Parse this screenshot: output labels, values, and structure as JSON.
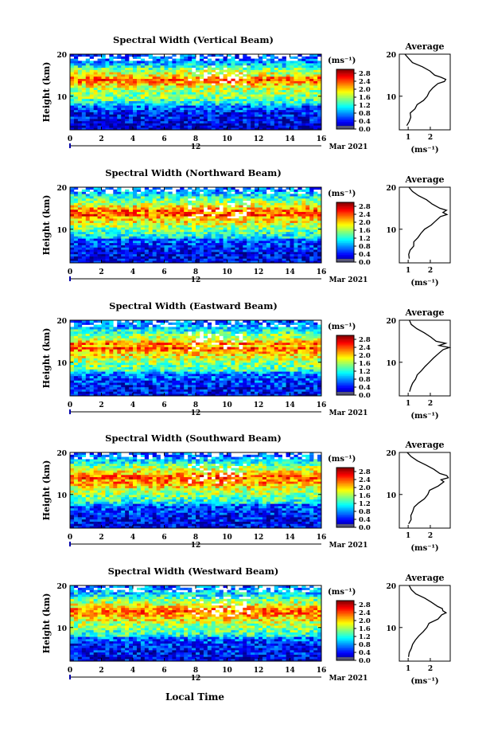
{
  "figure": {
    "x_axis_label": "Local Time",
    "date_label": "Mar 2021",
    "date_marker": "12",
    "average_title": "Average",
    "unit_label": "(ms⁻¹)"
  },
  "chart_data": [
    {
      "type": "heatmap",
      "title": "Spectral Width (Vertical Beam)",
      "xlabel": "",
      "ylabel": "Height (km)",
      "xlim": [
        0,
        16
      ],
      "ylim": [
        2,
        20
      ],
      "x_ticks": [
        0,
        2,
        4,
        6,
        8,
        10,
        12,
        14,
        16
      ],
      "y_ticks": [
        10,
        20
      ],
      "colorbar_ticks": [
        "0.0",
        "0.4",
        "0.8",
        "1.2",
        "1.6",
        "2.0",
        "2.4",
        "2.8"
      ],
      "colorbar_range": [
        0,
        3.0
      ],
      "profile": {
        "title": "Average",
        "xlabel": "(ms⁻¹)",
        "x_ticks": [
          1,
          2
        ],
        "y_ticks": [
          10,
          20
        ],
        "xlim": [
          0.6,
          2.9
        ],
        "height": [
          3,
          4,
          5,
          6,
          7,
          8,
          9,
          10,
          11,
          12,
          13,
          13.5,
          14,
          14.5,
          15,
          16,
          17,
          18,
          19,
          20
        ],
        "value": [
          0.9,
          1.0,
          1.1,
          1.1,
          1.3,
          1.4,
          1.7,
          1.9,
          1.9,
          2.1,
          2.4,
          2.6,
          2.7,
          2.5,
          2.2,
          2.0,
          1.6,
          1.2,
          1.0,
          0.9
        ]
      }
    },
    {
      "type": "heatmap",
      "title": "Spectral Width (Northward Beam)",
      "xlabel": "",
      "ylabel": "Height (km)",
      "xlim": [
        0,
        16
      ],
      "ylim": [
        2,
        20
      ],
      "x_ticks": [
        0,
        2,
        4,
        6,
        8,
        10,
        12,
        14,
        16
      ],
      "y_ticks": [
        10,
        20
      ],
      "colorbar_ticks": [
        "0.0",
        "0.4",
        "0.8",
        "1.2",
        "1.6",
        "2.0",
        "2.4",
        "2.8"
      ],
      "colorbar_range": [
        0,
        3.0
      ],
      "profile": {
        "title": "Average",
        "xlabel": "(ms⁻¹)",
        "x_ticks": [
          1,
          2
        ],
        "y_ticks": [
          10,
          20
        ],
        "xlim": [
          0.6,
          2.9
        ],
        "height": [
          3,
          4,
          5,
          6,
          7,
          8,
          9,
          10,
          11,
          12,
          13,
          13.5,
          14,
          14.5,
          15,
          16,
          17,
          18,
          19,
          20
        ],
        "value": [
          1.0,
          1.0,
          1.1,
          1.2,
          1.3,
          1.4,
          1.6,
          1.8,
          2.0,
          2.3,
          2.5,
          2.8,
          2.6,
          2.7,
          2.4,
          2.1,
          1.8,
          1.5,
          1.2,
          1.0
        ]
      }
    },
    {
      "type": "heatmap",
      "title": "Spectral Width (Eastward Beam)",
      "xlabel": "",
      "ylabel": "Height (km)",
      "xlim": [
        0,
        16
      ],
      "ylim": [
        2,
        20
      ],
      "x_ticks": [
        0,
        2,
        4,
        6,
        8,
        10,
        12,
        14,
        16
      ],
      "y_ticks": [
        10,
        20
      ],
      "colorbar_ticks": [
        "0.0",
        "0.4",
        "0.8",
        "1.2",
        "1.6",
        "2.0",
        "2.4",
        "2.8"
      ],
      "colorbar_range": [
        0,
        3.0
      ],
      "profile": {
        "title": "Average",
        "xlabel": "(ms⁻¹)",
        "x_ticks": [
          1,
          2
        ],
        "y_ticks": [
          10,
          20
        ],
        "xlim": [
          0.6,
          2.9
        ],
        "height": [
          3,
          4,
          5,
          6,
          7,
          8,
          9,
          10,
          11,
          12,
          13,
          13.5,
          14,
          14.5,
          15,
          16,
          17,
          18,
          19,
          20
        ],
        "value": [
          1.1,
          1.1,
          1.2,
          1.3,
          1.4,
          1.6,
          1.8,
          1.9,
          2.1,
          2.3,
          2.6,
          2.8,
          2.4,
          2.7,
          2.3,
          2.0,
          1.7,
          1.4,
          1.1,
          1.0
        ]
      }
    },
    {
      "type": "heatmap",
      "title": "Spectral Width (Southward Beam)",
      "xlabel": "",
      "ylabel": "Height (km)",
      "xlim": [
        0,
        16
      ],
      "ylim": [
        2,
        20
      ],
      "x_ticks": [
        0,
        2,
        4,
        6,
        8,
        10,
        12,
        14,
        16
      ],
      "y_ticks": [
        10,
        20
      ],
      "colorbar_ticks": [
        "0.0",
        "0.4",
        "0.8",
        "1.2",
        "1.6",
        "2.0",
        "2.4",
        "2.8"
      ],
      "colorbar_range": [
        0,
        3.0
      ],
      "profile": {
        "title": "Average",
        "xlabel": "(ms⁻¹)",
        "x_ticks": [
          1,
          2
        ],
        "y_ticks": [
          10,
          20
        ],
        "xlim": [
          0.6,
          2.9
        ],
        "height": [
          3,
          4,
          5,
          6,
          7,
          8,
          9,
          10,
          11,
          12,
          13,
          13.5,
          14,
          14.5,
          15,
          16,
          17,
          18,
          19,
          20
        ],
        "value": [
          1.0,
          1.1,
          1.1,
          1.2,
          1.3,
          1.5,
          1.7,
          1.9,
          2.0,
          2.3,
          2.6,
          2.5,
          2.8,
          2.7,
          2.4,
          2.1,
          1.8,
          1.4,
          1.1,
          1.0
        ]
      }
    },
    {
      "type": "heatmap",
      "title": "Spectral Width (Westward Beam)",
      "xlabel": "",
      "ylabel": "Height (km)",
      "xlim": [
        0,
        16
      ],
      "ylim": [
        2,
        20
      ],
      "x_ticks": [
        0,
        2,
        4,
        6,
        8,
        10,
        12,
        14,
        16
      ],
      "y_ticks": [
        10,
        20
      ],
      "colorbar_ticks": [
        "0.0",
        "0.4",
        "0.8",
        "1.2",
        "1.6",
        "2.0",
        "2.4",
        "2.8"
      ],
      "colorbar_range": [
        0,
        3.0
      ],
      "profile": {
        "title": "Average",
        "xlabel": "(ms⁻¹)",
        "x_ticks": [
          1,
          2
        ],
        "y_ticks": [
          10,
          20
        ],
        "xlim": [
          0.6,
          2.9
        ],
        "height": [
          3,
          4,
          5,
          6,
          7,
          8,
          9,
          10,
          11,
          12,
          13,
          13.5,
          14,
          14.5,
          15,
          16,
          17,
          18,
          19,
          20
        ],
        "value": [
          1.0,
          1.1,
          1.1,
          1.2,
          1.3,
          1.5,
          1.7,
          1.9,
          2.0,
          2.3,
          2.5,
          2.7,
          2.6,
          2.6,
          2.3,
          2.0,
          1.7,
          1.4,
          1.2,
          1.0
        ]
      }
    }
  ]
}
